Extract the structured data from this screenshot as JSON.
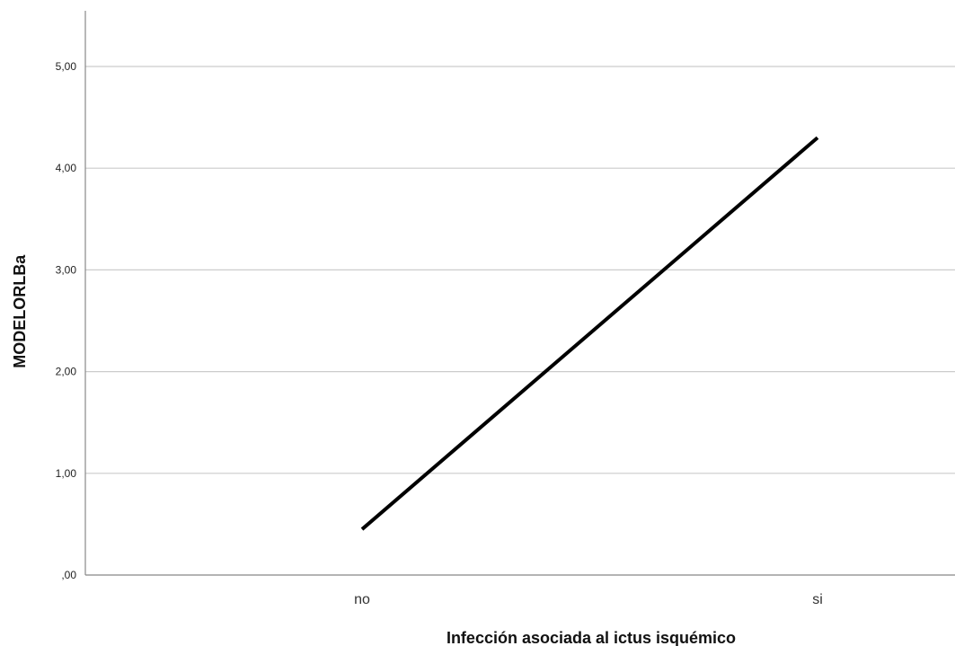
{
  "chart_data": {
    "type": "line",
    "title": "",
    "xlabel": "Infección asociada al ictus isquémico",
    "ylabel": "MODELORLBa",
    "categories": [
      "no",
      "si"
    ],
    "series": [
      {
        "values": [
          0.45,
          4.3
        ]
      }
    ],
    "ylim": [
      0,
      5.5
    ],
    "yticks": [
      0,
      1,
      2,
      3,
      4,
      5
    ],
    "ytick_labels": [
      ",00",
      "1,00",
      "2,00",
      "3,00",
      "4,00",
      "5,00"
    ],
    "grid": "horizontal",
    "legend": "none",
    "colors": {
      "line": "#000000",
      "grid": "#cccccc",
      "axis": "#888888"
    }
  }
}
